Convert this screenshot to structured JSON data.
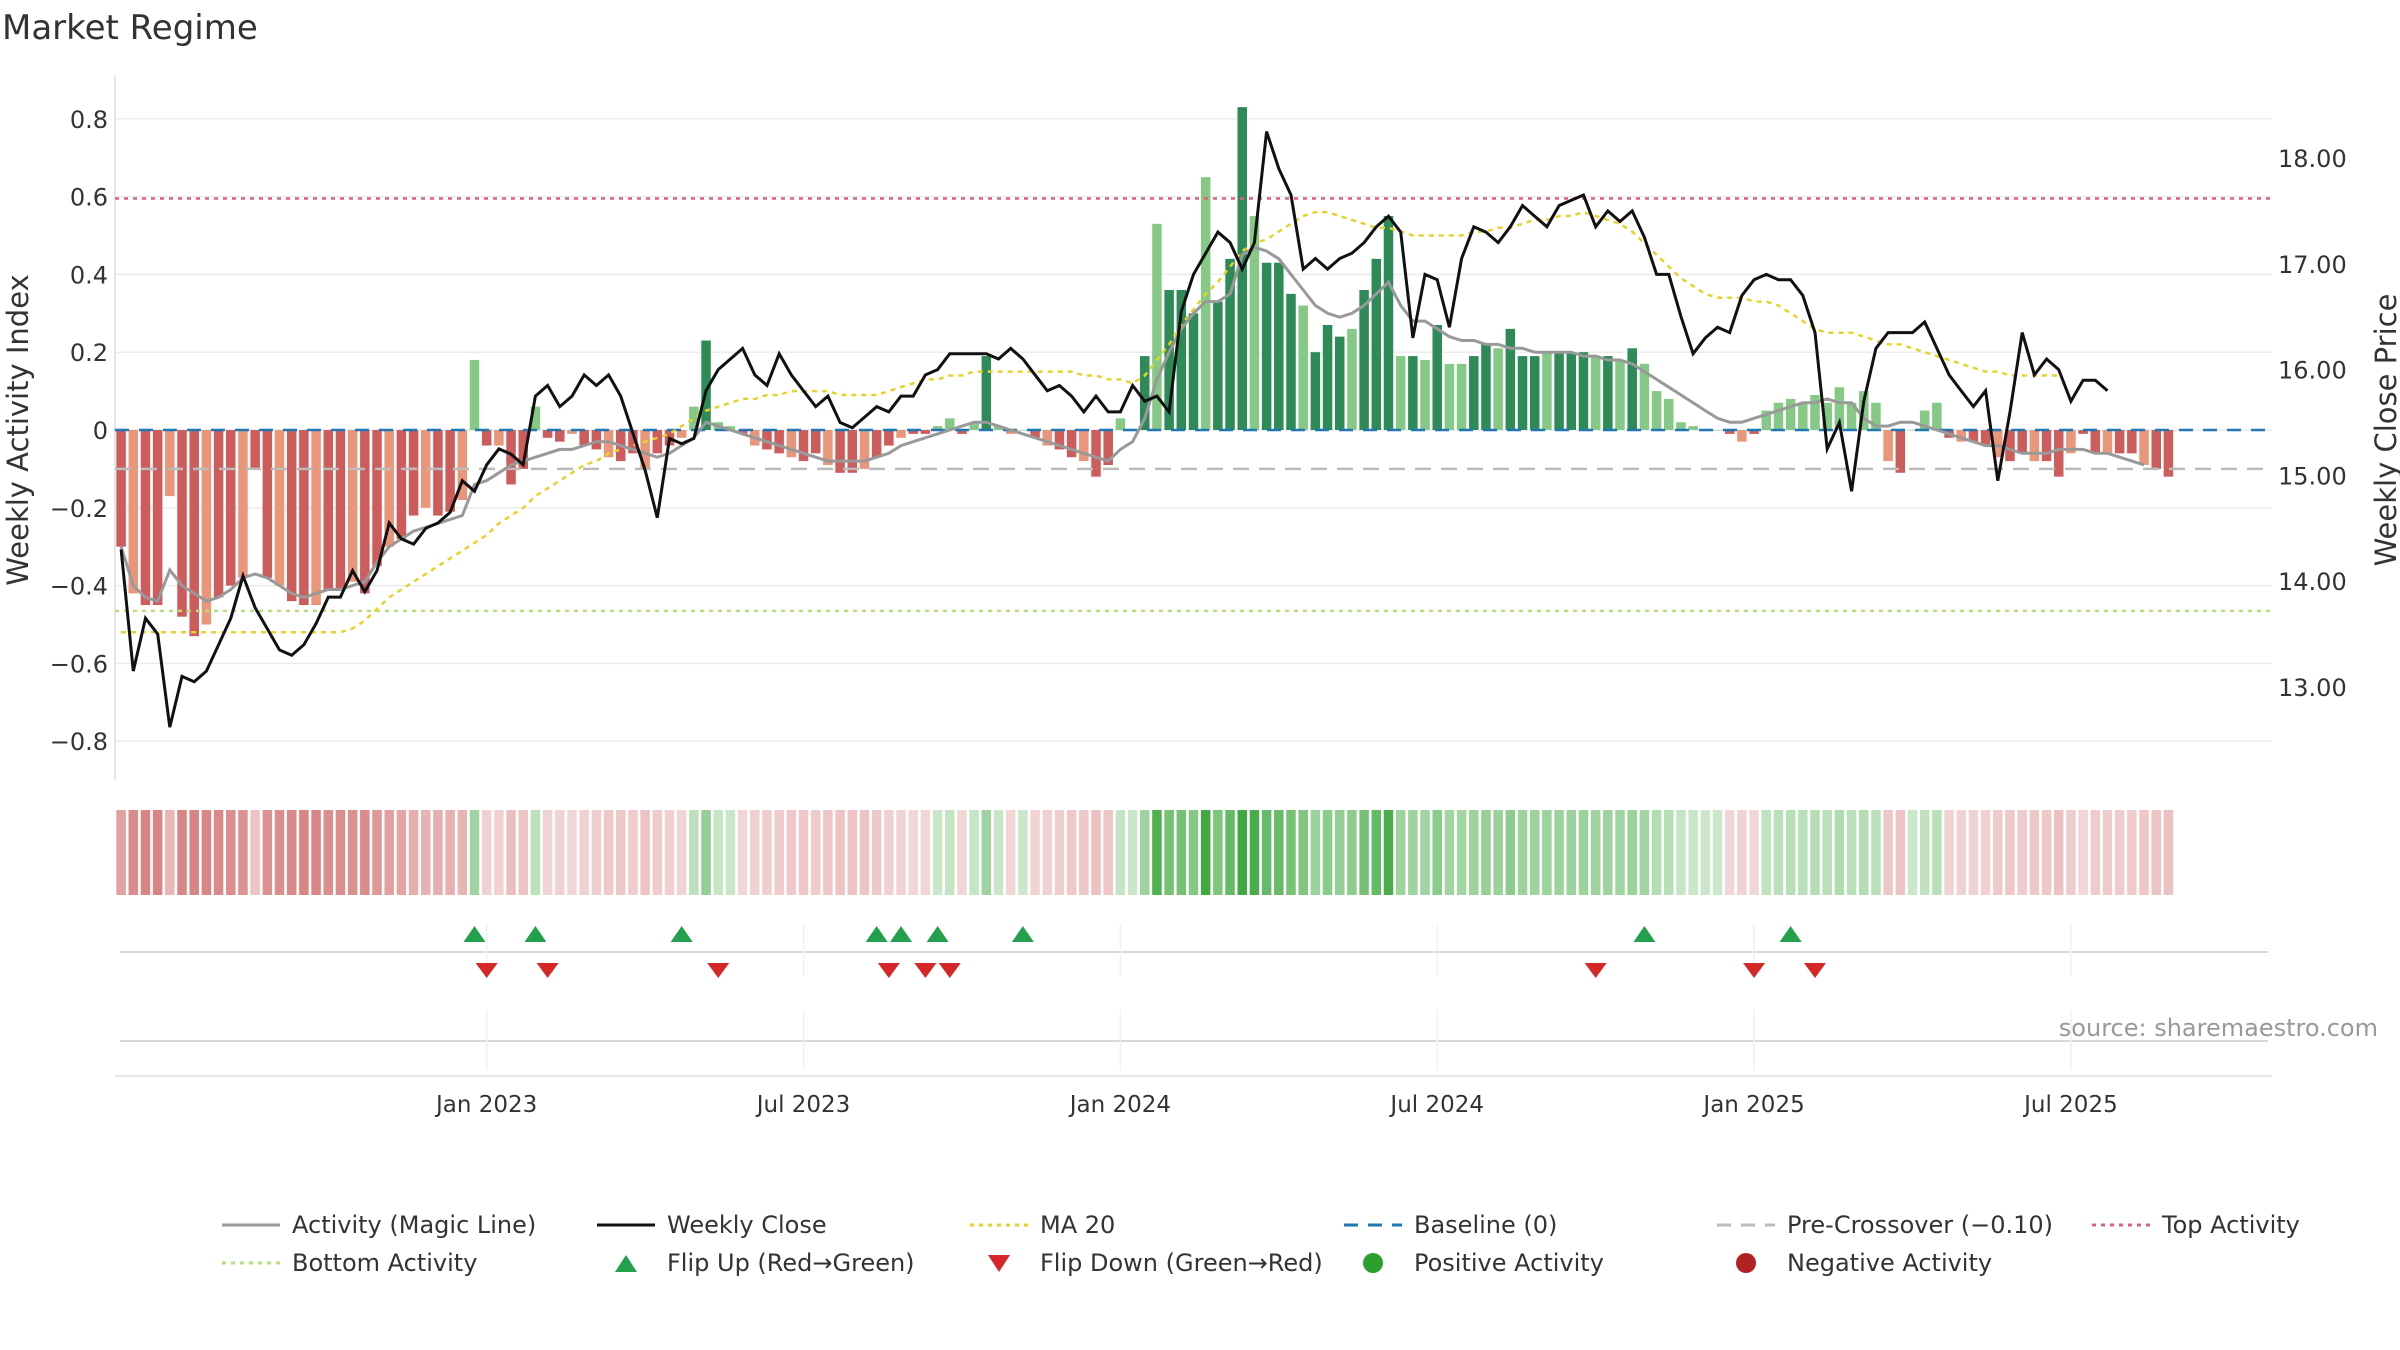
{
  "title": "Market Regime",
  "source": "source: sharemaestro.com",
  "colors": {
    "pos_dark": "#2e8b57",
    "pos_light": "#86c986",
    "neg_dark": "#cd5c5c",
    "neg_light": "#e9967a",
    "magic": "#999999",
    "close": "#111111",
    "ma": "#e6d32a",
    "baseline": "#1f77b4",
    "precross": "#bbbbbb",
    "top": "#e0607a",
    "bottom": "#b5e07a",
    "flip_up": "#22a04b",
    "flip_down": "#d62728",
    "pos_marker": "#2ca02c",
    "neg_marker": "#b22222"
  },
  "chart_data": {
    "type": "bar",
    "title": "Market Regime",
    "ylabel": "Weekly Activity Index",
    "y2label": "Weekly Close Price",
    "ylim": [
      -0.88,
      0.9
    ],
    "y2lim": [
      12.37,
      18.59
    ],
    "yticks": [
      "0.8",
      "0.6",
      "0.4",
      "0.2",
      "0",
      "−0.2",
      "−0.4",
      "−0.6",
      "−0.8"
    ],
    "ytick_values": [
      0.8,
      0.6,
      0.4,
      0.2,
      0,
      -0.2,
      -0.4,
      -0.6,
      -0.8
    ],
    "y2ticks": [
      "18.00",
      "17.00",
      "16.00",
      "15.00",
      "14.00",
      "13.00"
    ],
    "y2tick_values": [
      18,
      17,
      16,
      15,
      14,
      13
    ],
    "xticks": [
      "Jan 2023",
      "Jul 2023",
      "Jan 2024",
      "Jul 2024",
      "Jan 2025",
      "Jul 2025"
    ],
    "xtick_weeks": [
      30,
      56,
      82,
      108,
      134,
      160
    ],
    "weeks_total": 177,
    "first_week_x": 15,
    "activity": [
      -0.3,
      -0.42,
      -0.45,
      -0.45,
      -0.17,
      -0.48,
      -0.53,
      -0.5,
      -0.43,
      -0.4,
      -0.38,
      -0.1,
      -0.38,
      -0.4,
      -0.44,
      -0.45,
      -0.45,
      -0.41,
      -0.41,
      -0.39,
      -0.42,
      -0.35,
      -0.3,
      -0.28,
      -0.22,
      -0.2,
      -0.22,
      -0.21,
      -0.18,
      0.18,
      -0.04,
      -0.04,
      -0.14,
      -0.1,
      0.06,
      -0.02,
      -0.03,
      -0.01,
      -0.04,
      -0.05,
      -0.07,
      -0.08,
      -0.06,
      -0.1,
      -0.06,
      -0.04,
      -0.02,
      0.06,
      0.23,
      0.02,
      0.01,
      -0.01,
      -0.04,
      -0.05,
      -0.06,
      -0.07,
      -0.08,
      -0.06,
      -0.09,
      -0.11,
      -0.11,
      -0.1,
      -0.07,
      -0.04,
      -0.02,
      -0.01,
      -0.01,
      0.01,
      0.03,
      -0.01,
      0.02,
      0.19,
      0.01,
      -0.01,
      0.0,
      -0.02,
      -0.04,
      -0.05,
      -0.07,
      -0.08,
      -0.12,
      -0.09,
      0.03,
      0.0,
      0.19,
      0.53,
      0.36,
      0.36,
      0.3,
      0.65,
      0.33,
      0.44,
      0.83,
      0.55,
      0.43,
      0.43,
      0.35,
      0.32,
      0.2,
      0.27,
      0.24,
      0.26,
      0.36,
      0.44,
      0.55,
      0.19,
      0.19,
      0.18,
      0.27,
      0.17,
      0.17,
      0.19,
      0.22,
      0.21,
      0.26,
      0.19,
      0.19,
      0.2,
      0.2,
      0.2,
      0.2,
      0.19,
      0.19,
      0.18,
      0.21,
      0.17,
      0.1,
      0.08,
      0.02,
      0.01,
      0.0,
      0.0,
      -0.01,
      -0.03,
      -0.01,
      0.05,
      0.07,
      0.08,
      0.07,
      0.09,
      0.07,
      0.11,
      0.07,
      0.1,
      0.07,
      -0.08,
      -0.11,
      0.0,
      0.05,
      0.07,
      -0.02,
      -0.03,
      -0.03,
      -0.04,
      -0.07,
      -0.08,
      -0.06,
      -0.08,
      -0.08,
      -0.12,
      -0.06,
      -0.01,
      -0.06,
      -0.06,
      -0.06,
      -0.06,
      -0.09,
      -0.1,
      -0.12
    ],
    "magic_line": [
      -0.3,
      -0.4,
      -0.43,
      -0.44,
      -0.36,
      -0.4,
      -0.42,
      -0.44,
      -0.43,
      -0.41,
      -0.38,
      -0.37,
      -0.38,
      -0.4,
      -0.42,
      -0.43,
      -0.42,
      -0.41,
      -0.41,
      -0.4,
      -0.39,
      -0.34,
      -0.3,
      -0.28,
      -0.26,
      -0.25,
      -0.24,
      -0.23,
      -0.22,
      -0.14,
      -0.13,
      -0.11,
      -0.09,
      -0.08,
      -0.07,
      -0.06,
      -0.05,
      -0.05,
      -0.04,
      -0.03,
      -0.03,
      -0.04,
      -0.05,
      -0.06,
      -0.07,
      -0.06,
      -0.04,
      -0.02,
      0.02,
      0.01,
      0.0,
      -0.01,
      -0.02,
      -0.03,
      -0.04,
      -0.05,
      -0.06,
      -0.07,
      -0.08,
      -0.08,
      -0.08,
      -0.08,
      -0.07,
      -0.06,
      -0.04,
      -0.03,
      -0.02,
      -0.01,
      0.0,
      0.01,
      0.02,
      0.02,
      0.01,
      0.0,
      -0.01,
      -0.02,
      -0.03,
      -0.04,
      -0.05,
      -0.06,
      -0.07,
      -0.08,
      -0.05,
      -0.03,
      0.03,
      0.13,
      0.2,
      0.26,
      0.3,
      0.33,
      0.33,
      0.35,
      0.45,
      0.47,
      0.46,
      0.44,
      0.4,
      0.36,
      0.32,
      0.3,
      0.29,
      0.3,
      0.32,
      0.35,
      0.38,
      0.32,
      0.28,
      0.28,
      0.26,
      0.24,
      0.23,
      0.23,
      0.22,
      0.22,
      0.21,
      0.21,
      0.2,
      0.2,
      0.2,
      0.2,
      0.19,
      0.19,
      0.18,
      0.18,
      0.17,
      0.15,
      0.13,
      0.11,
      0.09,
      0.07,
      0.05,
      0.03,
      0.02,
      0.02,
      0.03,
      0.04,
      0.05,
      0.06,
      0.07,
      0.07,
      0.08,
      0.07,
      0.07,
      0.03,
      0.01,
      0.01,
      0.02,
      0.02,
      0.01,
      0.0,
      -0.01,
      -0.02,
      -0.03,
      -0.04,
      -0.04,
      -0.05,
      -0.06,
      -0.06,
      -0.06,
      -0.05,
      -0.05,
      -0.05,
      -0.06,
      -0.06,
      -0.07,
      -0.08,
      -0.09
    ],
    "ma20": [
      -0.52,
      -0.52,
      -0.52,
      -0.52,
      -0.52,
      -0.52,
      -0.52,
      -0.52,
      -0.52,
      -0.52,
      -0.52,
      -0.52,
      -0.52,
      -0.52,
      -0.52,
      -0.52,
      -0.52,
      -0.52,
      -0.52,
      -0.51,
      -0.49,
      -0.46,
      -0.43,
      -0.41,
      -0.39,
      -0.37,
      -0.35,
      -0.33,
      -0.31,
      -0.29,
      -0.27,
      -0.24,
      -0.22,
      -0.2,
      -0.17,
      -0.15,
      -0.13,
      -0.11,
      -0.09,
      -0.08,
      -0.06,
      -0.05,
      -0.04,
      -0.03,
      -0.02,
      -0.01,
      0.01,
      0.03,
      0.05,
      0.06,
      0.07,
      0.08,
      0.08,
      0.09,
      0.09,
      0.1,
      0.1,
      0.1,
      0.1,
      0.09,
      0.09,
      0.09,
      0.09,
      0.1,
      0.11,
      0.12,
      0.13,
      0.13,
      0.14,
      0.14,
      0.15,
      0.15,
      0.15,
      0.15,
      0.15,
      0.15,
      0.15,
      0.15,
      0.15,
      0.14,
      0.14,
      0.13,
      0.13,
      0.12,
      0.14,
      0.18,
      0.22,
      0.27,
      0.31,
      0.35,
      0.38,
      0.42,
      0.46,
      0.48,
      0.49,
      0.51,
      0.53,
      0.55,
      0.56,
      0.56,
      0.55,
      0.54,
      0.53,
      0.52,
      0.52,
      0.51,
      0.5,
      0.5,
      0.5,
      0.5,
      0.5,
      0.51,
      0.51,
      0.52,
      0.52,
      0.53,
      0.54,
      0.54,
      0.55,
      0.55,
      0.56,
      0.55,
      0.54,
      0.53,
      0.51,
      0.48,
      0.45,
      0.42,
      0.39,
      0.37,
      0.35,
      0.34,
      0.34,
      0.34,
      0.33,
      0.33,
      0.32,
      0.3,
      0.28,
      0.26,
      0.25,
      0.25,
      0.25,
      0.24,
      0.23,
      0.22,
      0.22,
      0.21,
      0.2,
      0.19,
      0.18,
      0.17,
      0.16,
      0.15,
      0.15,
      0.14,
      0.14,
      0.14,
      0.14,
      0.14
    ],
    "weekly_close": [
      14.3,
      13.15,
      13.65,
      13.5,
      12.62,
      13.1,
      13.05,
      13.15,
      13.4,
      13.65,
      14.05,
      13.75,
      13.55,
      13.35,
      13.3,
      13.4,
      13.6,
      13.85,
      13.85,
      14.1,
      13.9,
      14.1,
      14.55,
      14.4,
      14.35,
      14.5,
      14.55,
      14.65,
      14.95,
      14.85,
      15.1,
      15.25,
      15.2,
      15.1,
      15.75,
      15.85,
      15.65,
      15.75,
      15.95,
      15.85,
      15.95,
      15.75,
      15.4,
      15.05,
      14.6,
      15.35,
      15.3,
      15.35,
      15.8,
      16.0,
      16.1,
      16.2,
      15.95,
      15.85,
      16.15,
      15.95,
      15.8,
      15.65,
      15.75,
      15.5,
      15.45,
      15.55,
      15.65,
      15.6,
      15.75,
      15.75,
      15.95,
      16.0,
      16.15,
      16.15,
      16.15,
      16.15,
      16.1,
      16.2,
      16.1,
      15.95,
      15.8,
      15.85,
      15.75,
      15.6,
      15.75,
      15.6,
      15.6,
      15.85,
      15.7,
      15.75,
      15.6,
      16.55,
      16.9,
      17.1,
      17.3,
      17.2,
      16.95,
      17.2,
      18.25,
      17.9,
      17.65,
      16.95,
      17.05,
      16.95,
      17.05,
      17.1,
      17.2,
      17.35,
      17.45,
      17.3,
      16.3,
      16.9,
      16.85,
      16.4,
      17.05,
      17.35,
      17.3,
      17.2,
      17.35,
      17.55,
      17.45,
      17.35,
      17.55,
      17.6,
      17.65,
      17.35,
      17.5,
      17.4,
      17.5,
      17.25,
      16.9,
      16.9,
      16.5,
      16.15,
      16.3,
      16.4,
      16.35,
      16.7,
      16.85,
      16.9,
      16.85,
      16.85,
      16.7,
      16.35,
      15.25,
      15.5,
      14.85,
      15.7,
      16.2,
      16.35,
      16.35,
      16.35,
      16.45,
      16.2,
      15.95,
      15.8,
      15.65,
      15.8,
      14.95,
      15.6,
      16.35,
      15.95,
      16.1,
      16.0,
      15.7,
      15.9,
      15.9,
      15.8
    ],
    "top_activity": 0.595,
    "bottom_activity": -0.465,
    "baseline": 0,
    "pre_crossover": -0.1,
    "flip_up_weeks": [
      29,
      34,
      46,
      62,
      64,
      67,
      74,
      125,
      137
    ],
    "flip_down_weeks": [
      30,
      35,
      49,
      63,
      66,
      68,
      121,
      134,
      139
    ],
    "legend": [
      {
        "label": "Activity (Magic Line)",
        "symbol": "line-gray"
      },
      {
        "label": "Weekly Close",
        "symbol": "line-black"
      },
      {
        "label": "MA 20",
        "symbol": "dotted-yellow"
      },
      {
        "label": "Baseline (0)",
        "symbol": "dashed-blue"
      },
      {
        "label": "Pre-Crossover (−0.10)",
        "symbol": "dashed-gray"
      },
      {
        "label": "Top Activity",
        "symbol": "dotted-red"
      },
      {
        "label": "Bottom Activity",
        "symbol": "dotted-green"
      },
      {
        "label": "Flip Up (Red→Green)",
        "symbol": "triangle-up"
      },
      {
        "label": "Flip Down (Green→Red)",
        "symbol": "triangle-down"
      },
      {
        "label": "Positive Activity",
        "symbol": "dot-green"
      },
      {
        "label": "Negative Activity",
        "symbol": "dot-red"
      }
    ]
  }
}
